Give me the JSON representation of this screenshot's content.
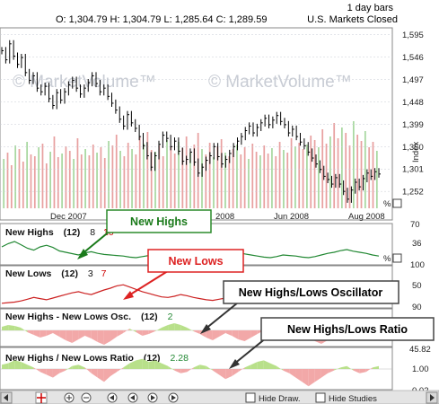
{
  "header": {
    "interval": "1 day bars",
    "ohlc": "O: 1,304.79  H: 1,304.79  L: 1,285.64  C: 1,289.59",
    "status": "U.S. Markets Closed"
  },
  "watermark": "© MarketVolume™",
  "main_chart": {
    "y_ticks": [
      "1,595",
      "1,546",
      "1,497",
      "1,448",
      "1,399",
      "1,350",
      "1,301",
      "1,252"
    ],
    "ylim": [
      1215,
      1610
    ],
    "y_axis_label": "Index",
    "x_labels": [
      "Dec 2007",
      "2008",
      "Jun 2008",
      "Aug 2008"
    ],
    "percent_label": "%",
    "price_closes": [
      1560,
      1540,
      1575,
      1548,
      1530,
      1545,
      1512,
      1495,
      1505,
      1478,
      1470,
      1482,
      1455,
      1440,
      1468,
      1452,
      1470,
      1485,
      1495,
      1478,
      1465,
      1478,
      1490,
      1505,
      1488,
      1470,
      1478,
      1460,
      1445,
      1430,
      1410,
      1395,
      1420,
      1402,
      1390,
      1372,
      1352,
      1330,
      1305,
      1330,
      1355,
      1375,
      1368,
      1350,
      1362,
      1340,
      1318,
      1322,
      1338,
      1316,
      1292,
      1305,
      1320,
      1330,
      1350,
      1328,
      1312,
      1322,
      1335,
      1350,
      1362,
      1372,
      1385,
      1395,
      1380,
      1392,
      1402,
      1412,
      1398,
      1408,
      1418,
      1405,
      1398,
      1380,
      1388,
      1372,
      1360,
      1352,
      1338,
      1325,
      1312,
      1300,
      1285,
      1278,
      1268,
      1282,
      1268,
      1252,
      1235,
      1255,
      1272,
      1262,
      1280,
      1292,
      1285,
      1295,
      1290
    ],
    "vol_bars": [
      0.55,
      0.62,
      0.48,
      0.7,
      0.66,
      0.52,
      0.74,
      0.6,
      0.58,
      0.68,
      0.72,
      0.5,
      0.63,
      0.8,
      0.57,
      0.61,
      0.69,
      0.64,
      0.55,
      0.78,
      0.6,
      0.66,
      0.59,
      0.71,
      0.62,
      0.68,
      0.56,
      0.75,
      0.7,
      0.82,
      0.64,
      0.58,
      0.73,
      0.66,
      0.6,
      0.79,
      0.72,
      0.85,
      0.65,
      0.63,
      0.7,
      0.58,
      0.76,
      0.69,
      0.61,
      0.74,
      0.67,
      0.8,
      0.62,
      0.71,
      0.84,
      0.66,
      0.6,
      0.73,
      0.57,
      0.69,
      0.77,
      0.62,
      0.58,
      0.66,
      0.71,
      0.6,
      0.68,
      0.55,
      0.72,
      0.63,
      0.59,
      0.7,
      0.61,
      0.67,
      0.58,
      0.74,
      0.65,
      0.62,
      0.78,
      0.69,
      0.73,
      0.66,
      0.71,
      0.81,
      0.76,
      0.68,
      0.88,
      0.72,
      0.8,
      0.95,
      0.78,
      0.9,
      0.84,
      0.7,
      0.97,
      0.82,
      0.75,
      0.86,
      0.68,
      0.74,
      0.64
    ]
  },
  "panels": [
    {
      "id": "new-highs",
      "title": "New Highs",
      "period": "(12)",
      "value": "8",
      "value2": "10",
      "value2_color": "#cc0000",
      "ticks": [
        "70",
        "36",
        "100"
      ],
      "pct": "%",
      "line_color": "#228833"
    },
    {
      "id": "new-lows",
      "title": "New Lows",
      "period": "(12)",
      "value": "3",
      "value2": "7",
      "value2_color": "#cc0000",
      "ticks": [
        "50",
        "90"
      ],
      "pct": "%",
      "line_color": "#cc2222"
    },
    {
      "id": "osc",
      "title": "New Highs - New Lows Osc.",
      "period": "(12)",
      "value": "2",
      "value_color": "#228833",
      "ticks": [
        "0"
      ],
      "pct": ""
    },
    {
      "id": "ratio",
      "title": "New Highs / New Lows Ratio",
      "period": "(12)",
      "value": "2.28",
      "value_color": "#228833",
      "ticks": [
        "45.82",
        "1.00",
        "0.02"
      ],
      "pct": ""
    }
  ],
  "callouts": [
    {
      "id": "new-highs-callout",
      "text": "New Highs",
      "color": "#1a7a1a",
      "border": "#2a8a2a"
    },
    {
      "id": "new-lows-callout",
      "text": "New Lows",
      "color": "#dd2222",
      "border": "#dd2222"
    },
    {
      "id": "osc-callout",
      "text": "New Highs/Lows Oscillator",
      "color": "#000000",
      "border": "#444444"
    },
    {
      "id": "ratio-callout",
      "text": "New Highs/Lows Ratio",
      "color": "#000000",
      "border": "#444444"
    }
  ],
  "toolbar": {
    "hide_draw": "Hide Draw.",
    "hide_studies": "Hide Studies"
  },
  "colors": {
    "up_fill": "#b8e08a",
    "down_fill": "#f2a8a8",
    "grid": "#c8ccd4",
    "vol_red": "#e8a0a0",
    "vol_green": "#a8d8a0"
  },
  "chart_data": [
    {
      "type": "line",
      "title": "",
      "ylabel": "Index",
      "y_ticks": [
        1595,
        1546,
        1497,
        1448,
        1399,
        1350,
        1301,
        1252
      ],
      "x_tick_labels": [
        "Dec 2007",
        "2008",
        "Jun 2008",
        "Aug 2008"
      ],
      "series": [
        {
          "name": "Index",
          "values_ref": "main_chart.price_closes"
        }
      ],
      "ohlc_last": {
        "open": 1304.79,
        "high": 1304.79,
        "low": 1285.64,
        "close": 1289.59
      }
    },
    {
      "type": "line",
      "title": "New Highs (12)",
      "series": [
        {
          "name": "New Highs",
          "values": [
            60,
            72,
            80,
            68,
            55,
            48,
            60,
            66,
            58,
            45,
            40,
            35,
            30,
            38,
            42,
            36,
            32,
            30,
            28,
            26,
            22,
            20,
            24,
            28,
            30,
            26,
            22,
            20,
            18,
            16,
            15,
            20,
            24,
            30,
            36,
            40,
            44,
            38,
            34,
            30,
            26,
            22,
            20,
            24,
            30,
            28,
            26,
            22,
            20,
            24,
            30,
            36,
            40,
            46,
            50,
            44,
            40,
            36,
            30,
            26
          ]
        }
      ]
    },
    {
      "type": "line",
      "title": "New Lows (12)",
      "series": [
        {
          "name": "New Lows",
          "values": [
            10,
            12,
            14,
            18,
            24,
            30,
            26,
            22,
            28,
            34,
            40,
            46,
            50,
            44,
            40,
            48,
            56,
            62,
            70,
            74,
            66,
            58,
            50,
            44,
            38,
            32,
            30,
            34,
            40,
            36,
            30,
            26,
            22,
            20,
            24,
            28,
            32,
            38,
            44,
            50,
            56,
            60,
            52,
            46,
            40,
            36,
            34,
            38,
            44,
            52,
            58,
            62,
            56,
            48,
            40,
            34,
            30,
            26,
            22,
            20
          ]
        }
      ]
    },
    {
      "type": "area",
      "title": "New Highs - New Lows Osc. (12)",
      "series": [
        {
          "name": "Oscillator",
          "values": [
            4,
            6,
            5,
            3,
            -2,
            -5,
            -8,
            -6,
            -3,
            -7,
            -11,
            -14,
            -10,
            -6,
            -9,
            -13,
            -16,
            -12,
            -7,
            -3,
            2,
            -2,
            -6,
            -4,
            -1,
            3,
            6,
            8,
            6,
            3,
            -1,
            -4,
            -8,
            -11,
            -7,
            -3,
            -6,
            -10,
            -12,
            -8,
            -4,
            0,
            4,
            7,
            5,
            2,
            -1,
            -5,
            -9,
            -12,
            -15,
            -11,
            -6,
            -2,
            1,
            3,
            -1,
            -4,
            -2,
            1
          ]
        }
      ]
    },
    {
      "type": "area",
      "title": "New Highs / New Lows Ratio (12)",
      "series": [
        {
          "name": "Ratio",
          "values": [
            3,
            4,
            6,
            5,
            3,
            1,
            -2,
            -4,
            -6,
            -3,
            -1,
            2,
            3,
            1,
            -3,
            -6,
            -9,
            -5,
            -2,
            1,
            4,
            6,
            7,
            5,
            6,
            4,
            2,
            -1,
            -3,
            -2,
            1,
            3,
            2,
            -1,
            -4,
            -7,
            -5,
            -2,
            1,
            3,
            5,
            6,
            4,
            2,
            -1,
            -3,
            -6,
            -9,
            -12,
            -9,
            -6,
            -3,
            -1,
            1,
            2,
            -1,
            -3,
            -2,
            1,
            2
          ]
        }
      ]
    }
  ]
}
